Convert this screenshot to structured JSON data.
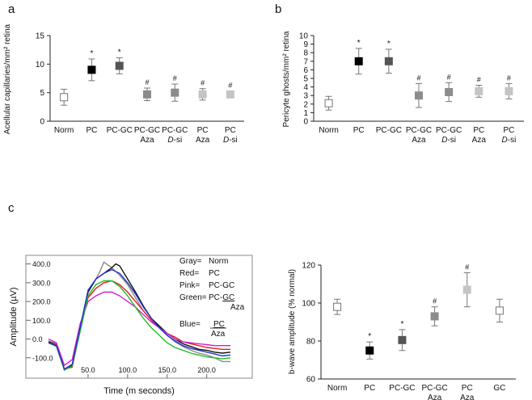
{
  "chart_data": [
    {
      "panel": "a",
      "type": "scatter",
      "ylabel": "Acellular capillaries/mm² retina",
      "ylim": [
        0,
        15
      ],
      "yticks": [
        0,
        5,
        10,
        15
      ],
      "categories": [
        [
          "Norm"
        ],
        [
          "PC"
        ],
        [
          "PC-GC"
        ],
        [
          "PC-GC",
          "Aza"
        ],
        [
          "PC-GC",
          "D-si"
        ],
        [
          "PC",
          "Aza"
        ],
        [
          "PC",
          "D-si"
        ]
      ],
      "values": [
        4.2,
        9.0,
        9.7,
        4.7,
        5.0,
        4.7,
        4.7
      ],
      "errors": [
        1.4,
        1.9,
        1.4,
        1.1,
        1.5,
        1.0,
        0.6
      ],
      "annotations": [
        "",
        "*",
        "*",
        "#",
        "#",
        "#",
        "#"
      ],
      "marker_colors": [
        "#ffffff",
        "#000000",
        "#555555",
        "#8c8c8c",
        "#8c8c8c",
        "#c4c4c4",
        "#c4c4c4"
      ]
    },
    {
      "panel": "b",
      "type": "scatter",
      "ylabel": "Pericyte ghosts/mm² retina",
      "ylim": [
        0,
        10
      ],
      "yticks": [
        0,
        1,
        2,
        3,
        4,
        5,
        6,
        7,
        8,
        9,
        10
      ],
      "categories": [
        [
          "Norm"
        ],
        [
          "PC"
        ],
        [
          "PC-GC"
        ],
        [
          "PC-GC",
          "Aza"
        ],
        [
          "PC-GC",
          "D-si"
        ],
        [
          "PC",
          "Aza"
        ],
        [
          "PC",
          "D-si"
        ]
      ],
      "values": [
        2.1,
        7.0,
        7.0,
        3.0,
        3.4,
        3.5,
        3.5
      ],
      "errors": [
        0.8,
        1.5,
        1.4,
        1.4,
        1.1,
        0.7,
        0.9
      ],
      "annotations": [
        "",
        "*",
        "*",
        "#",
        "#",
        "#",
        "#"
      ],
      "marker_colors": [
        "#ffffff",
        "#000000",
        "#555555",
        "#8c8c8c",
        "#8c8c8c",
        "#c4c4c4",
        "#c4c4c4"
      ]
    },
    {
      "panel": "c",
      "type": "line",
      "xlabel": "Time (m seconds)",
      "ylabel": "Amplitude (µV)",
      "xticks": [
        "50.0",
        "100.0",
        "150.0",
        "200.0"
      ],
      "yticks": [
        "-100.0",
        "0.0",
        "100.0",
        "200.0",
        "300.0",
        "400.0"
      ],
      "legend": [
        {
          "key": "Gray=",
          "name": "Norm",
          "color": "#8a8a8a"
        },
        {
          "key": "Red=",
          "name": "PC",
          "color": "#e02020"
        },
        {
          "key": "Pink=",
          "name": "PC-GC",
          "color": "#d020d0"
        },
        {
          "key": "Green=",
          "name": "PC-GC Aza",
          "color": "#22bb22"
        },
        {
          "key": "Blue=",
          "name": "PC Aza",
          "color": "#2233cc"
        }
      ],
      "legend_extra": {
        "green_sub": "Aza",
        "blue_name": "PC",
        "blue_sub": "Aza"
      },
      "series": [
        {
          "name": "Gray",
          "color": "#8a8a8a",
          "points": [
            [
              0,
              -10
            ],
            [
              10,
              -25
            ],
            [
              20,
              -160
            ],
            [
              30,
              -140
            ],
            [
              40,
              60
            ],
            [
              50,
              250
            ],
            [
              60,
              320
            ],
            [
              65,
              360
            ],
            [
              70,
              410
            ],
            [
              75,
              395
            ],
            [
              80,
              380
            ],
            [
              90,
              340
            ],
            [
              100,
              290
            ],
            [
              110,
              220
            ],
            [
              120,
              150
            ],
            [
              130,
              100
            ],
            [
              140,
              60
            ],
            [
              150,
              20
            ],
            [
              160,
              -15
            ],
            [
              170,
              -40
            ],
            [
              180,
              -60
            ],
            [
              190,
              -75
            ],
            [
              200,
              -85
            ],
            [
              210,
              -100
            ],
            [
              220,
              -120
            ],
            [
              230,
              -120
            ]
          ]
        },
        {
          "name": "Black",
          "color": "#111111",
          "points": [
            [
              0,
              -15
            ],
            [
              10,
              -30
            ],
            [
              20,
              -165
            ],
            [
              30,
              -140
            ],
            [
              40,
              60
            ],
            [
              50,
              250
            ],
            [
              60,
              320
            ],
            [
              70,
              350
            ],
            [
              80,
              380
            ],
            [
              85,
              400
            ],
            [
              90,
              390
            ],
            [
              100,
              320
            ],
            [
              110,
              250
            ],
            [
              120,
              175
            ],
            [
              130,
              110
            ],
            [
              140,
              70
            ],
            [
              150,
              30
            ],
            [
              160,
              0
            ],
            [
              170,
              -25
            ],
            [
              180,
              -40
            ],
            [
              190,
              -55
            ],
            [
              200,
              -60
            ],
            [
              210,
              -70
            ],
            [
              220,
              -75
            ],
            [
              230,
              -70
            ]
          ]
        },
        {
          "name": "Red",
          "color": "#e02020",
          "points": [
            [
              0,
              -20
            ],
            [
              10,
              -30
            ],
            [
              20,
              -160
            ],
            [
              30,
              -150
            ],
            [
              40,
              50
            ],
            [
              50,
              220
            ],
            [
              60,
              270
            ],
            [
              70,
              300
            ],
            [
              80,
              310
            ],
            [
              90,
              290
            ],
            [
              100,
              250
            ],
            [
              110,
              200
            ],
            [
              120,
              150
            ],
            [
              130,
              100
            ],
            [
              140,
              60
            ],
            [
              150,
              30
            ],
            [
              160,
              10
            ],
            [
              170,
              -15
            ],
            [
              180,
              -25
            ],
            [
              190,
              -35
            ],
            [
              200,
              -45
            ],
            [
              210,
              -50
            ],
            [
              220,
              -55
            ],
            [
              230,
              -55
            ]
          ]
        },
        {
          "name": "Pink",
          "color": "#d020d0",
          "points": [
            [
              0,
              0
            ],
            [
              10,
              -20
            ],
            [
              20,
              -140
            ],
            [
              30,
              -110
            ],
            [
              40,
              80
            ],
            [
              50,
              200
            ],
            [
              60,
              230
            ],
            [
              70,
              250
            ],
            [
              80,
              250
            ],
            [
              90,
              230
            ],
            [
              100,
              200
            ],
            [
              110,
              170
            ],
            [
              120,
              130
            ],
            [
              130,
              90
            ],
            [
              140,
              60
            ],
            [
              150,
              30
            ],
            [
              160,
              0
            ],
            [
              170,
              -15
            ],
            [
              180,
              -20
            ],
            [
              190,
              -25
            ],
            [
              200,
              -30
            ],
            [
              210,
              -35
            ],
            [
              220,
              -35
            ],
            [
              230,
              -35
            ]
          ]
        },
        {
          "name": "Green",
          "color": "#22bb22",
          "points": [
            [
              0,
              -20
            ],
            [
              10,
              -40
            ],
            [
              20,
              -165
            ],
            [
              30,
              -145
            ],
            [
              40,
              40
            ],
            [
              50,
              230
            ],
            [
              60,
              290
            ],
            [
              70,
              310
            ],
            [
              80,
              310
            ],
            [
              90,
              280
            ],
            [
              100,
              230
            ],
            [
              110,
              170
            ],
            [
              120,
              110
            ],
            [
              130,
              60
            ],
            [
              140,
              20
            ],
            [
              150,
              -20
            ],
            [
              160,
              -45
            ],
            [
              170,
              -60
            ],
            [
              180,
              -75
            ],
            [
              190,
              -85
            ],
            [
              200,
              -95
            ],
            [
              210,
              -100
            ],
            [
              220,
              -105
            ],
            [
              230,
              -100
            ]
          ]
        },
        {
          "name": "Blue",
          "color": "#2233cc",
          "points": [
            [
              0,
              -20
            ],
            [
              10,
              -35
            ],
            [
              20,
              -160
            ],
            [
              30,
              -135
            ],
            [
              40,
              60
            ],
            [
              50,
              260
            ],
            [
              60,
              320
            ],
            [
              70,
              350
            ],
            [
              80,
              370
            ],
            [
              90,
              350
            ],
            [
              100,
              300
            ],
            [
              110,
              240
            ],
            [
              120,
              170
            ],
            [
              130,
              110
            ],
            [
              140,
              60
            ],
            [
              150,
              20
            ],
            [
              160,
              -10
            ],
            [
              170,
              -35
            ],
            [
              180,
              -50
            ],
            [
              190,
              -60
            ],
            [
              200,
              -70
            ],
            [
              210,
              -80
            ],
            [
              220,
              -90
            ],
            [
              230,
              -85
            ]
          ]
        }
      ]
    },
    {
      "panel": "c-right",
      "type": "scatter",
      "ylabel": "b-wave amplitude (% normal)",
      "ylim": [
        60,
        120
      ],
      "yticks": [
        60,
        80,
        100,
        120
      ],
      "categories": [
        [
          "Norm"
        ],
        [
          "PC"
        ],
        [
          "PC-GC"
        ],
        [
          "PC-GC",
          "Aza"
        ],
        [
          "PC",
          "Aza"
        ],
        [
          "GC"
        ]
      ],
      "values": [
        98,
        75,
        80.5,
        93,
        107,
        96
      ],
      "errors": [
        4,
        4.5,
        5.5,
        5,
        9,
        6
      ],
      "annotations": [
        "",
        "*",
        "*",
        "#",
        "#",
        ""
      ],
      "marker_colors": [
        "#ffffff",
        "#000000",
        "#555555",
        "#8c8c8c",
        "#c4c4c4",
        "#ffffff"
      ]
    }
  ],
  "panel_labels": {
    "a": "a",
    "b": "b",
    "c": "c"
  }
}
